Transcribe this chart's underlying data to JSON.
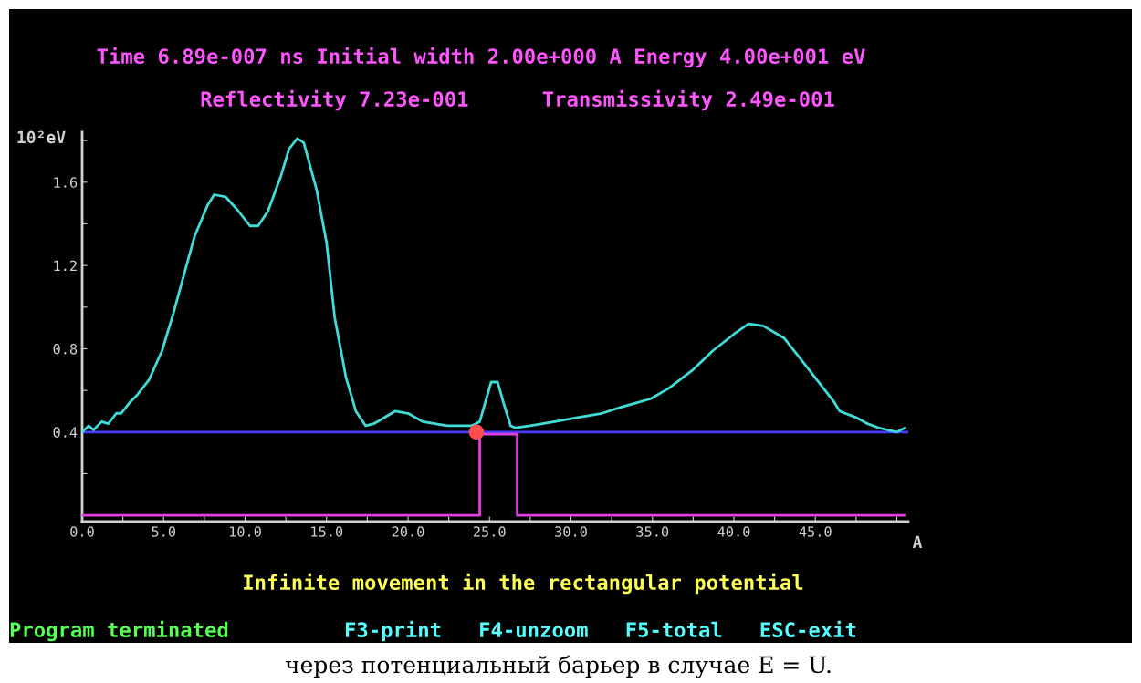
{
  "chart_data": {
    "type": "line",
    "title": "Time 6.89e-007 ns Initial width 2.00e+000 A Energy 4.00e+001 eV",
    "subtitle": "Reflectivity 7.23e-001      Transmissivity 2.49e-001",
    "xlabel": "A",
    "ylabel": "10²eV",
    "xlim": [
      0,
      50.7
    ],
    "ylim": [
      -0.03,
      1.84
    ],
    "xticks": [
      {
        "value": 0,
        "label": "0.0"
      },
      {
        "value": 2.5,
        "label": null
      },
      {
        "value": 5,
        "label": "5.0"
      },
      {
        "value": 7.5,
        "label": null
      },
      {
        "value": 10,
        "label": "10.0"
      },
      {
        "value": 12.5,
        "label": null
      },
      {
        "value": 15,
        "label": "15.0"
      },
      {
        "value": 17.5,
        "label": null
      },
      {
        "value": 20,
        "label": "20.0"
      },
      {
        "value": 22.5,
        "label": null
      },
      {
        "value": 25,
        "label": "25.0"
      },
      {
        "value": 27.5,
        "label": null
      },
      {
        "value": 30,
        "label": "30.0"
      },
      {
        "value": 32.5,
        "label": null
      },
      {
        "value": 35,
        "label": "35.0"
      },
      {
        "value": 37.5,
        "label": null
      },
      {
        "value": 40,
        "label": "40.0"
      },
      {
        "value": 42.5,
        "label": null
      },
      {
        "value": 45,
        "label": "45.0"
      },
      {
        "value": 47.5,
        "label": null
      },
      {
        "value": 50,
        "label": null
      }
    ],
    "yticks": [
      {
        "value": 0.2,
        "label": null
      },
      {
        "value": 0.4,
        "label": "0.4"
      },
      {
        "value": 0.6,
        "label": null
      },
      {
        "value": 0.8,
        "label": "0.8"
      },
      {
        "value": 1.0,
        "label": null
      },
      {
        "value": 1.2,
        "label": "1.2"
      },
      {
        "value": 1.4,
        "label": null
      },
      {
        "value": 1.6,
        "label": "1.6"
      },
      {
        "value": 1.8,
        "label": null
      }
    ],
    "grid": false,
    "legend": false,
    "series": [
      {
        "color": "#3fdcd8",
        "x": [
          0,
          0.4,
          0.7,
          1.2,
          1.6,
          2.1,
          2.4,
          2.9,
          3.4,
          4.1,
          4.9,
          5.6,
          6.3,
          6.9,
          7.7,
          8.1,
          8.8,
          9.5,
          10.3,
          10.8,
          11.4,
          12.2,
          12.7,
          13.2,
          13.6,
          14.4,
          15.0,
          15.5,
          16.2,
          16.8,
          17.4,
          17.9,
          19.2,
          20.0,
          20.9,
          22.4,
          23.9,
          24.4,
          25.1,
          25.5,
          25.9,
          26.3,
          26.6,
          27.5,
          29.0,
          30.4,
          31.9,
          33.1,
          34.0,
          34.9,
          36.0,
          37.5,
          38.7,
          40.0,
          40.9,
          41.8,
          43.1,
          44.3,
          45.4,
          46.1,
          46.5,
          47.5,
          48.2,
          48.9,
          50.0,
          50.5
        ],
        "values": [
          0.4,
          0.43,
          0.41,
          0.45,
          0.44,
          0.49,
          0.49,
          0.54,
          0.58,
          0.65,
          0.79,
          0.97,
          1.17,
          1.34,
          1.49,
          1.54,
          1.53,
          1.47,
          1.39,
          1.39,
          1.46,
          1.63,
          1.76,
          1.81,
          1.79,
          1.56,
          1.31,
          0.95,
          0.66,
          0.5,
          0.43,
          0.44,
          0.5,
          0.49,
          0.45,
          0.43,
          0.43,
          0.45,
          0.64,
          0.64,
          0.53,
          0.43,
          0.42,
          0.43,
          0.45,
          0.47,
          0.49,
          0.52,
          0.54,
          0.56,
          0.61,
          0.7,
          0.79,
          0.87,
          0.92,
          0.91,
          0.85,
          0.73,
          0.62,
          0.55,
          0.5,
          0.47,
          0.44,
          0.42,
          0.4,
          0.42
        ]
      },
      {
        "color": "#e040e0",
        "x": [
          0,
          24.4,
          24.4,
          26.7,
          26.7,
          50.5
        ],
        "values": [
          0,
          0,
          0.39,
          0.39,
          0,
          0
        ]
      },
      {
        "type": "scatter",
        "color": "#ff4d4d",
        "marker": "circle",
        "x": [
          24.2
        ],
        "values": [
          0.4
        ]
      }
    ],
    "ref_lines": [
      {
        "axis": "y",
        "value": 0.4,
        "color": "#4a3cff"
      }
    ],
    "annotations": [
      "Infinite movement in the rectangular potential",
      "Program terminated",
      "F3-print   F4-unzoom   F5-total   ESC-exit",
      "через потенциальный барьер в случае E = U."
    ]
  }
}
